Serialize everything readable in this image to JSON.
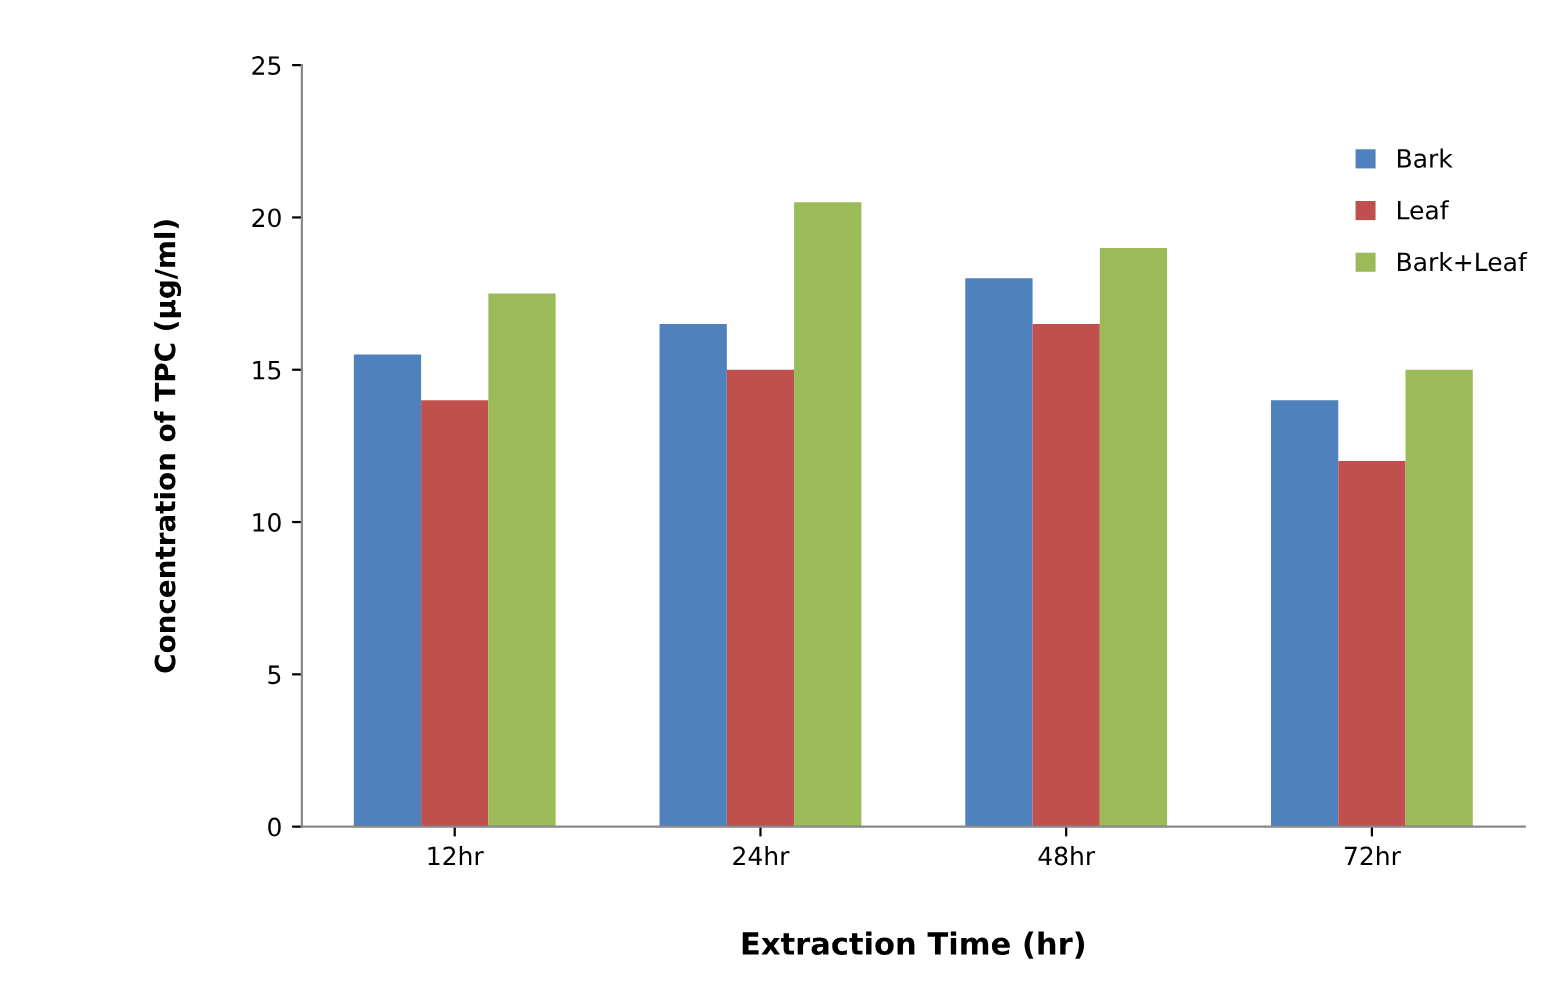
{
  "chart_data": {
    "type": "bar",
    "xlabel": "Extraction Time (hr)",
    "ylabel": "Concentration of TPC (µg/ml)",
    "categories": [
      "12hr",
      "24hr",
      "48hr",
      "72hr"
    ],
    "series": [
      {
        "name": "Bark",
        "color": "#4f81bd",
        "values": [
          15.5,
          16.5,
          18,
          14
        ]
      },
      {
        "name": "Leaf",
        "color": "#c0504d",
        "values": [
          14,
          15,
          16.5,
          12
        ]
      },
      {
        "name": "Bark+Leaf",
        "color": "#9bbb59",
        "values": [
          17.5,
          20.5,
          19,
          15
        ]
      }
    ],
    "ylim": [
      0,
      25
    ],
    "yticks": [
      0,
      5,
      10,
      15,
      20,
      25
    ],
    "grid": false,
    "legend": "top right"
  }
}
